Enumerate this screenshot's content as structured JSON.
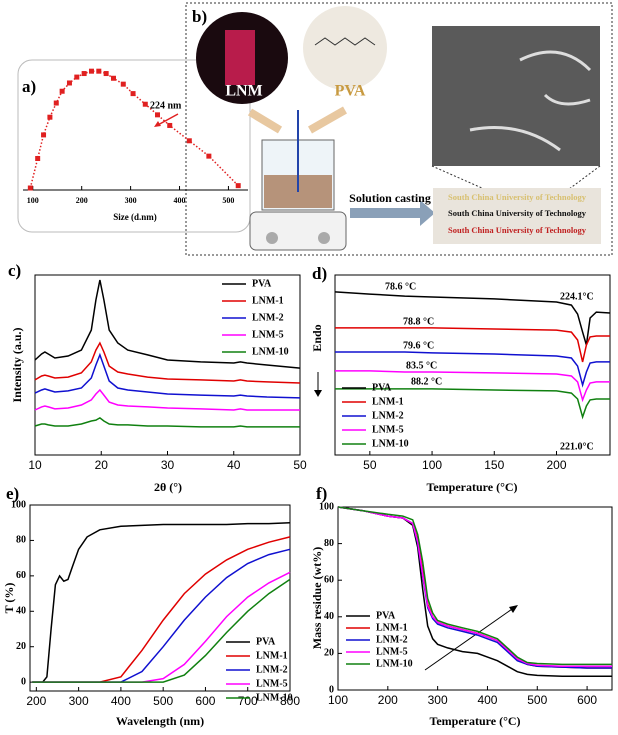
{
  "chart_data": [
    {
      "type": "line",
      "title": "a)",
      "xlabel": "Size (d.nm)",
      "annotations": [
        "224 nm"
      ],
      "marker": "square",
      "line_style": "dotted",
      "color": "#e02020",
      "x": [
        95,
        110,
        122,
        135,
        148,
        160,
        175,
        190,
        205,
        220,
        235,
        250,
        265,
        285,
        305,
        330,
        355,
        380,
        420,
        460,
        520
      ],
      "values": [
        0,
        25,
        45,
        60,
        72,
        82,
        89,
        94,
        97,
        99,
        99,
        97,
        93,
        88,
        80,
        71,
        62,
        53,
        40,
        27,
        2
      ],
      "xlim": [
        80,
        540
      ],
      "ylim": [
        0,
        100
      ],
      "xticks": [
        100,
        200,
        300,
        400,
        500
      ]
    },
    {
      "type": "line",
      "title": "c)",
      "xlabel": "2θ (°)",
      "ylabel": "Intensity (a.u.)",
      "x": [
        10,
        11,
        11.5,
        12,
        13,
        15,
        17,
        18.5,
        19.2,
        19.8,
        20.4,
        21.2,
        22.5,
        24,
        27,
        30,
        35,
        40,
        41,
        42,
        45,
        50
      ],
      "series": [
        {
          "name": "PVA",
          "color": "#000000",
          "values": [
            52.8,
            56.1,
            57.2,
            56.1,
            53.9,
            55,
            58.3,
            69.4,
            86.1,
            97.2,
            86.1,
            69.4,
            62.2,
            58.3,
            55.6,
            52.8,
            51.7,
            51.1,
            51.7,
            51.1,
            50,
            48.3
          ]
        },
        {
          "name": "LNM-1",
          "color": "#e00000",
          "values": [
            41.7,
            43.9,
            44.4,
            43.9,
            42.8,
            43.3,
            45.6,
            51.7,
            58.3,
            62.2,
            57.2,
            49.4,
            46.1,
            45,
            43.3,
            42.2,
            41.7,
            41.1,
            41.7,
            41.1,
            40.6,
            40
          ]
        },
        {
          "name": "LNM-2",
          "color": "#1010d0",
          "values": [
            34.4,
            36.1,
            36.7,
            36.1,
            35,
            35.6,
            37.2,
            42.8,
            50,
            55.6,
            49.4,
            41.1,
            37.2,
            36.1,
            35,
            33.9,
            33.3,
            32.8,
            33.3,
            32.8,
            32.2,
            31.7
          ]
        },
        {
          "name": "LNM-5",
          "color": "#ff00ff",
          "values": [
            25,
            26.7,
            27.2,
            26.7,
            25.6,
            26.1,
            27.8,
            30.6,
            33.9,
            36.1,
            33.3,
            29.4,
            27.8,
            27.2,
            26.7,
            26.1,
            25.6,
            25,
            25.6,
            25,
            25,
            25
          ]
        },
        {
          "name": "LNM-10",
          "color": "#108010",
          "values": [
            16.1,
            17.2,
            17.2,
            16.7,
            16.1,
            16.1,
            17.2,
            18.9,
            19.4,
            20.6,
            18.9,
            17.2,
            16.7,
            16.7,
            16.1,
            16.1,
            15.6,
            15.6,
            16.1,
            15.6,
            15.6,
            15.6
          ]
        }
      ],
      "xlim": [
        10,
        50
      ],
      "ylim": [
        0,
        100
      ],
      "xticks": [
        10,
        20,
        30,
        40,
        50
      ]
    },
    {
      "type": "line",
      "title": "d)",
      "xlabel": "Temperature (°C)",
      "ylabel": "Endo",
      "annotations": [
        "78.6 °C",
        "224.1°C",
        "78.8 °C",
        "79.6 °C",
        "83.5 °C",
        "88.2 °C",
        "221.0°C"
      ],
      "x": [
        22,
        50,
        78,
        100,
        150,
        200,
        212,
        217,
        221,
        224,
        227,
        232,
        243
      ],
      "series": [
        {
          "name": "PVA",
          "color": "#000000",
          "values": [
            90.6,
            89.4,
            88.3,
            87.8,
            86.7,
            85,
            83.3,
            78.3,
            68.3,
            61.1,
            76.1,
            79.4,
            78.9
          ]
        },
        {
          "name": "LNM-1",
          "color": "#e00000",
          "values": [
            70.6,
            70.6,
            70.6,
            70.6,
            70,
            69.4,
            68.3,
            63.9,
            51.7,
            61.1,
            65.6,
            66.1,
            66.1
          ]
        },
        {
          "name": "LNM-2",
          "color": "#1010d0",
          "values": [
            57.2,
            57.2,
            57.2,
            56.7,
            56.1,
            55,
            53.9,
            49.4,
            38.9,
            46.1,
            51.1,
            51.7,
            51.7
          ]
        },
        {
          "name": "LNM-5",
          "color": "#ff00ff",
          "values": [
            46.7,
            46.7,
            46.1,
            46.1,
            45.6,
            45,
            43.9,
            40.6,
            30.6,
            36.1,
            40,
            40.6,
            40.6
          ]
        },
        {
          "name": "LNM-10",
          "color": "#108010",
          "values": [
            36.7,
            36.7,
            36.7,
            36.7,
            36.1,
            35.6,
            34.4,
            31.1,
            21.1,
            27.2,
            30.6,
            31.1,
            31.1
          ]
        }
      ],
      "xlim": [
        22,
        243
      ],
      "ylim": [
        0,
        100
      ],
      "xticks": [
        50,
        100,
        150,
        200
      ]
    },
    {
      "type": "line",
      "title": "e)",
      "xlabel": "Wavelength (nm)",
      "ylabel": "T (%)",
      "x": [
        190,
        215,
        225,
        235,
        245,
        255,
        265,
        275,
        285,
        300,
        320,
        350,
        400,
        450,
        500,
        550,
        600,
        650,
        700,
        750,
        800
      ],
      "series": [
        {
          "name": "PVA",
          "color": "#000000",
          "values": [
            0,
            0,
            3,
            30,
            55,
            60,
            57,
            58,
            65,
            75,
            82,
            86,
            88,
            88.5,
            89,
            89,
            89,
            89,
            89.5,
            89.5,
            90
          ]
        },
        {
          "name": "LNM-1",
          "color": "#e00000",
          "values": [
            0,
            0,
            0,
            0,
            0,
            0,
            0,
            0,
            0,
            0,
            0,
            0,
            3,
            18,
            35,
            50,
            61,
            69,
            75,
            79,
            82
          ]
        },
        {
          "name": "LNM-2",
          "color": "#1010d0",
          "values": [
            0,
            0,
            0,
            0,
            0,
            0,
            0,
            0,
            0,
            0,
            0,
            0,
            0,
            6,
            20,
            35,
            48,
            59,
            67,
            72,
            75
          ]
        },
        {
          "name": "LNM-5",
          "color": "#ff00ff",
          "values": [
            0,
            0,
            0,
            0,
            0,
            0,
            0,
            0,
            0,
            0,
            0,
            0,
            0,
            0,
            2,
            10,
            23,
            37,
            48,
            56,
            62
          ]
        },
        {
          "name": "LNM-10",
          "color": "#108010",
          "values": [
            0,
            0,
            0,
            0,
            0,
            0,
            0,
            0,
            0,
            0,
            0,
            0,
            0,
            0,
            0,
            4,
            15,
            28,
            40,
            50,
            58
          ]
        }
      ],
      "xlim": [
        185,
        800
      ],
      "ylim": [
        -5,
        100
      ],
      "xticks": [
        200,
        300,
        400,
        500,
        600,
        700,
        800
      ],
      "yticks": [
        0,
        20,
        40,
        60,
        80,
        100
      ]
    },
    {
      "type": "line",
      "title": "f)",
      "xlabel": "Temperature (°C)",
      "ylabel": "Mass residue (wt%)",
      "x": [
        100,
        150,
        200,
        230,
        250,
        260,
        270,
        280,
        290,
        300,
        320,
        350,
        380,
        400,
        420,
        440,
        460,
        480,
        500,
        550,
        600,
        650
      ],
      "series": [
        {
          "name": "PVA",
          "color": "#000000",
          "values": [
            100,
            98,
            95,
            94,
            90,
            78,
            55,
            35,
            28,
            25,
            23,
            21,
            20,
            18,
            16,
            13,
            10,
            8.5,
            8,
            7.5,
            7.5,
            7.5
          ]
        },
        {
          "name": "LNM-1",
          "color": "#e00000",
          "values": [
            100,
            98,
            95,
            94,
            91,
            82,
            65,
            47,
            40,
            37,
            35,
            33,
            31,
            29,
            27,
            22,
            17,
            14,
            13,
            12.5,
            12,
            12
          ]
        },
        {
          "name": "LNM-2",
          "color": "#1010d0",
          "values": [
            100,
            98,
            95,
            94,
            91,
            80,
            62,
            45,
            39,
            36,
            34,
            32,
            30,
            28,
            26,
            21,
            16,
            14,
            13,
            12.5,
            12,
            12
          ]
        },
        {
          "name": "LNM-5",
          "color": "#ff00ff",
          "values": [
            100,
            98,
            95,
            94,
            91,
            81,
            63,
            46,
            40,
            37,
            35,
            33,
            31,
            29,
            27,
            22,
            17,
            14.5,
            13.5,
            13,
            13,
            13
          ]
        },
        {
          "name": "LNM-10",
          "color": "#108010",
          "values": [
            100,
            98,
            96,
            95,
            93,
            85,
            70,
            50,
            42,
            38,
            36,
            34,
            32,
            30,
            28,
            23,
            18,
            15,
            14.5,
            14,
            14,
            14
          ]
        }
      ],
      "xlim": [
        100,
        650
      ],
      "ylim": [
        0,
        100
      ],
      "xticks": [
        100,
        200,
        300,
        400,
        500,
        600
      ],
      "yticks": [
        0,
        20,
        40,
        60,
        80,
        100
      ]
    }
  ],
  "diagram": {
    "label": "b)",
    "lnm": "LNM",
    "pva": "PVA",
    "arrow": "Solution casting",
    "film_texts": [
      "South China University of Technology",
      "South China University of Technology",
      "South China University of Technology"
    ]
  }
}
